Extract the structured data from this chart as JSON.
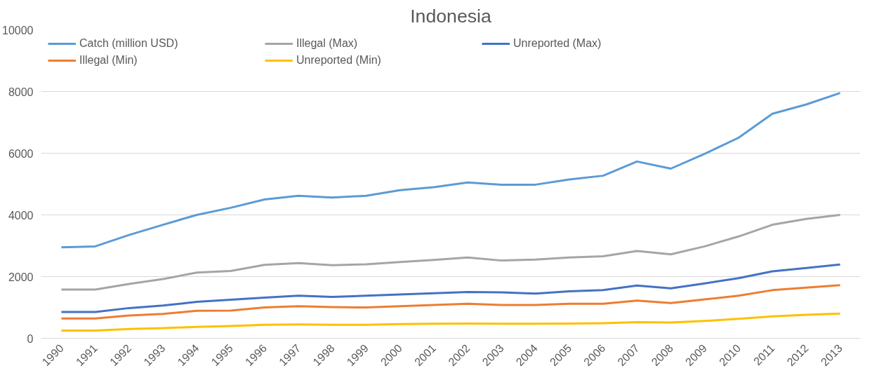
{
  "chart_data": {
    "type": "line",
    "title": "Indonesia",
    "categories": [
      "1990",
      "1991",
      "1992",
      "1993",
      "1994",
      "1995",
      "1996",
      "1997",
      "1998",
      "1999",
      "2000",
      "2001",
      "2002",
      "2003",
      "2004",
      "2005",
      "2006",
      "2007",
      "2008",
      "2009",
      "2010",
      "2011",
      "2012",
      "2013"
    ],
    "series": [
      {
        "name": "Catch (million USD)",
        "color": "#5b9bd5",
        "values": [
          2950,
          2980,
          3350,
          3680,
          4000,
          4230,
          4500,
          4620,
          4560,
          4620,
          4800,
          4900,
          5050,
          4980,
          4980,
          5150,
          5270,
          5730,
          5500,
          5980,
          6500,
          7280,
          7580,
          7950
        ]
      },
      {
        "name": "Illegal (Min)",
        "color": "#ed7d31",
        "values": [
          640,
          640,
          740,
          790,
          890,
          900,
          1000,
          1040,
          1010,
          1000,
          1040,
          1080,
          1120,
          1080,
          1080,
          1120,
          1120,
          1220,
          1140,
          1260,
          1380,
          1560,
          1640,
          1720
        ]
      },
      {
        "name": "Illegal (Max)",
        "color": "#a5a5a5",
        "values": [
          1580,
          1580,
          1760,
          1920,
          2130,
          2180,
          2380,
          2440,
          2370,
          2400,
          2470,
          2540,
          2620,
          2520,
          2550,
          2620,
          2660,
          2830,
          2720,
          2980,
          3300,
          3680,
          3870,
          4000
        ]
      },
      {
        "name": "Unreported (Min)",
        "color": "#ffc000",
        "values": [
          250,
          250,
          300,
          330,
          370,
          400,
          440,
          450,
          440,
          440,
          460,
          470,
          480,
          470,
          470,
          480,
          490,
          520,
          510,
          560,
          630,
          710,
          760,
          800
        ]
      },
      {
        "name": "Unreported (Max)",
        "color": "#4472c4",
        "values": [
          850,
          850,
          980,
          1060,
          1180,
          1250,
          1320,
          1380,
          1340,
          1380,
          1420,
          1460,
          1500,
          1490,
          1450,
          1520,
          1560,
          1710,
          1620,
          1780,
          1950,
          2170,
          2280,
          2390
        ]
      }
    ],
    "ylim": [
      0,
      10000
    ],
    "yticks": [
      0,
      2000,
      4000,
      6000,
      8000,
      10000
    ],
    "grid": "y",
    "legend": "top left",
    "marker": "none",
    "line_style": "solid"
  }
}
